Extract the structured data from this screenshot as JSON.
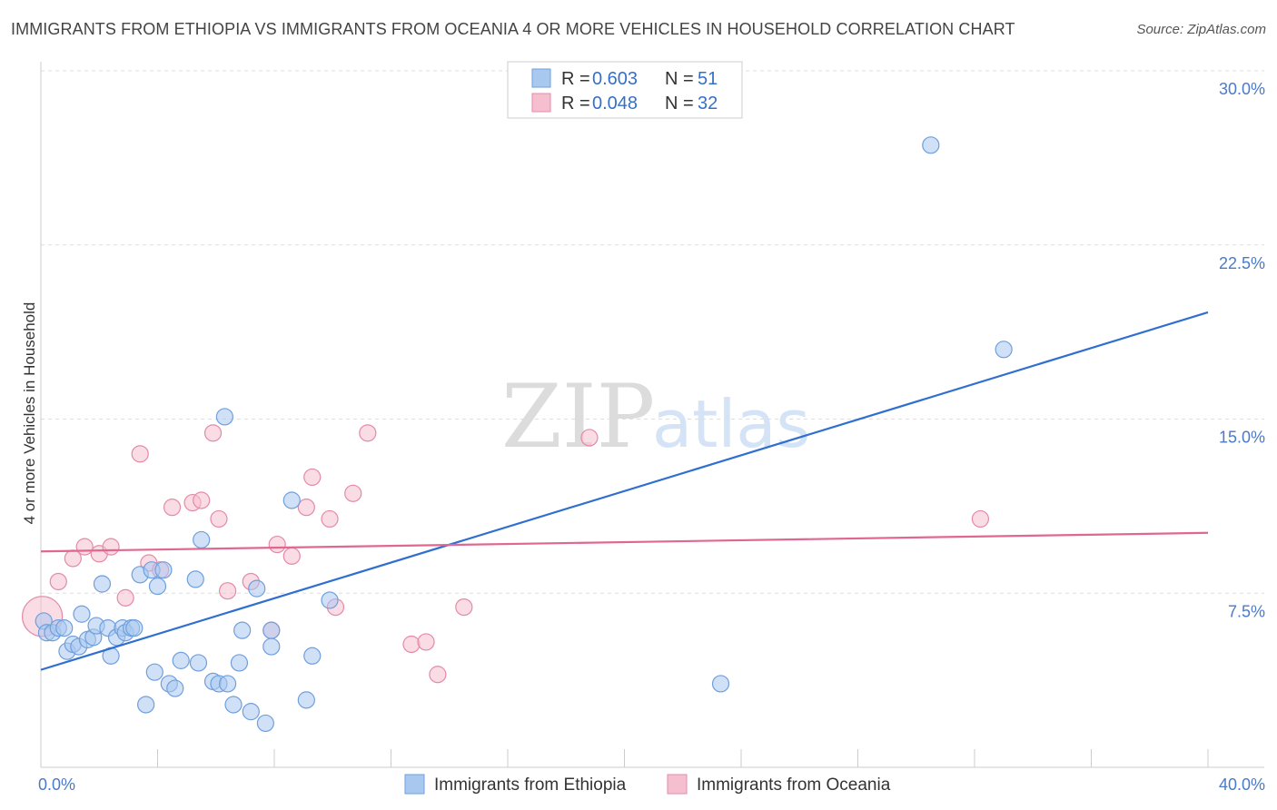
{
  "header": {
    "title": "IMMIGRANTS FROM ETHIOPIA VS IMMIGRANTS FROM OCEANIA 4 OR MORE VEHICLES IN HOUSEHOLD CORRELATION CHART",
    "source": "Source: ZipAtlas.com"
  },
  "watermark": {
    "zip": "ZIP",
    "atlas": "atlas"
  },
  "colors": {
    "ethiopia_fill": "#a9c8f0",
    "ethiopia_stroke": "#6f9fdc",
    "ethiopia_line": "#2f6fcf",
    "oceania_fill": "#f6bfd0",
    "oceania_stroke": "#e48aa8",
    "oceania_line": "#e06890",
    "tick_label": "#4a7ac9",
    "grid": "#dddddd"
  },
  "legend": {
    "rows": [
      {
        "r_label": "R = ",
        "r_value": "0.603",
        "n_label": "N = ",
        "n_value": "51"
      },
      {
        "r_label": "R = ",
        "r_value": "0.048",
        "n_label": "N = ",
        "n_value": "32"
      }
    ]
  },
  "chart_data": {
    "type": "scatter",
    "title": "IMMIGRANTS FROM ETHIOPIA VS IMMIGRANTS FROM OCEANIA 4 OR MORE VEHICLES IN HOUSEHOLD CORRELATION CHART",
    "xlabel": "",
    "ylabel": "4 or more Vehicles in Household",
    "xlim": [
      0,
      40
    ],
    "ylim": [
      0,
      30
    ],
    "x_tick_labels": [
      {
        "value": 0,
        "label": "0.0%"
      },
      {
        "value": 40,
        "label": "40.0%"
      }
    ],
    "y_tick_labels": [
      {
        "value": 7.5,
        "label": "7.5%"
      },
      {
        "value": 15,
        "label": "15.0%"
      },
      {
        "value": 22.5,
        "label": "22.5%"
      },
      {
        "value": 30,
        "label": "30.0%"
      }
    ],
    "x_minor_ticks": [
      0,
      4,
      8,
      12,
      16,
      20,
      24,
      28,
      32,
      36,
      40
    ],
    "series": [
      {
        "name": "Immigrants from Ethiopia",
        "r": 0.603,
        "n": 51,
        "trend": {
          "x": [
            0,
            40
          ],
          "y": [
            4.2,
            19.6
          ]
        },
        "points": [
          [
            0.1,
            6.3
          ],
          [
            0.2,
            5.8
          ],
          [
            0.4,
            5.8
          ],
          [
            0.6,
            6.0
          ],
          [
            0.8,
            6.0
          ],
          [
            0.9,
            5.0
          ],
          [
            1.1,
            5.3
          ],
          [
            1.3,
            5.2
          ],
          [
            1.4,
            6.6
          ],
          [
            1.6,
            5.5
          ],
          [
            1.8,
            5.6
          ],
          [
            1.9,
            6.1
          ],
          [
            2.1,
            7.9
          ],
          [
            2.3,
            6.0
          ],
          [
            2.4,
            4.8
          ],
          [
            2.6,
            5.6
          ],
          [
            2.8,
            6.0
          ],
          [
            2.9,
            5.8
          ],
          [
            3.1,
            6.0
          ],
          [
            3.2,
            6.0
          ],
          [
            3.4,
            8.3
          ],
          [
            3.6,
            2.7
          ],
          [
            3.8,
            8.5
          ],
          [
            3.9,
            4.1
          ],
          [
            4.0,
            7.8
          ],
          [
            4.2,
            8.5
          ],
          [
            4.4,
            3.6
          ],
          [
            4.6,
            3.4
          ],
          [
            4.8,
            4.6
          ],
          [
            5.3,
            8.1
          ],
          [
            5.4,
            4.5
          ],
          [
            5.5,
            9.8
          ],
          [
            5.9,
            3.7
          ],
          [
            6.1,
            3.6
          ],
          [
            6.3,
            15.1
          ],
          [
            6.4,
            3.6
          ],
          [
            6.6,
            2.7
          ],
          [
            6.8,
            4.5
          ],
          [
            6.9,
            5.9
          ],
          [
            7.2,
            2.4
          ],
          [
            7.4,
            7.7
          ],
          [
            7.7,
            1.9
          ],
          [
            7.9,
            5.2
          ],
          [
            7.9,
            5.9
          ],
          [
            8.6,
            11.5
          ],
          [
            9.1,
            2.9
          ],
          [
            9.3,
            4.8
          ],
          [
            9.9,
            7.2
          ],
          [
            23.3,
            3.6
          ],
          [
            30.5,
            26.8
          ],
          [
            33.0,
            18.0
          ]
        ]
      },
      {
        "name": "Immigrants from Oceania",
        "r": 0.048,
        "n": 32,
        "trend": {
          "x": [
            0,
            40
          ],
          "y": [
            9.3,
            10.1
          ]
        },
        "points": [
          [
            0.05,
            6.5
          ],
          [
            0.6,
            8.0
          ],
          [
            1.1,
            9.0
          ],
          [
            1.5,
            9.5
          ],
          [
            2.0,
            9.2
          ],
          [
            2.4,
            9.5
          ],
          [
            2.9,
            7.3
          ],
          [
            3.4,
            13.5
          ],
          [
            3.7,
            8.8
          ],
          [
            4.1,
            8.5
          ],
          [
            4.5,
            11.2
          ],
          [
            5.2,
            11.4
          ],
          [
            5.5,
            11.5
          ],
          [
            5.9,
            14.4
          ],
          [
            6.1,
            10.7
          ],
          [
            6.4,
            7.6
          ],
          [
            7.2,
            8.0
          ],
          [
            7.9,
            5.9
          ],
          [
            8.1,
            9.6
          ],
          [
            8.6,
            9.1
          ],
          [
            9.1,
            11.2
          ],
          [
            9.3,
            12.5
          ],
          [
            9.9,
            10.7
          ],
          [
            10.1,
            6.9
          ],
          [
            10.7,
            11.8
          ],
          [
            11.2,
            14.4
          ],
          [
            12.7,
            5.3
          ],
          [
            13.2,
            5.4
          ],
          [
            13.6,
            4.0
          ],
          [
            14.5,
            6.9
          ],
          [
            18.8,
            14.2
          ],
          [
            32.2,
            10.7
          ]
        ]
      }
    ]
  }
}
